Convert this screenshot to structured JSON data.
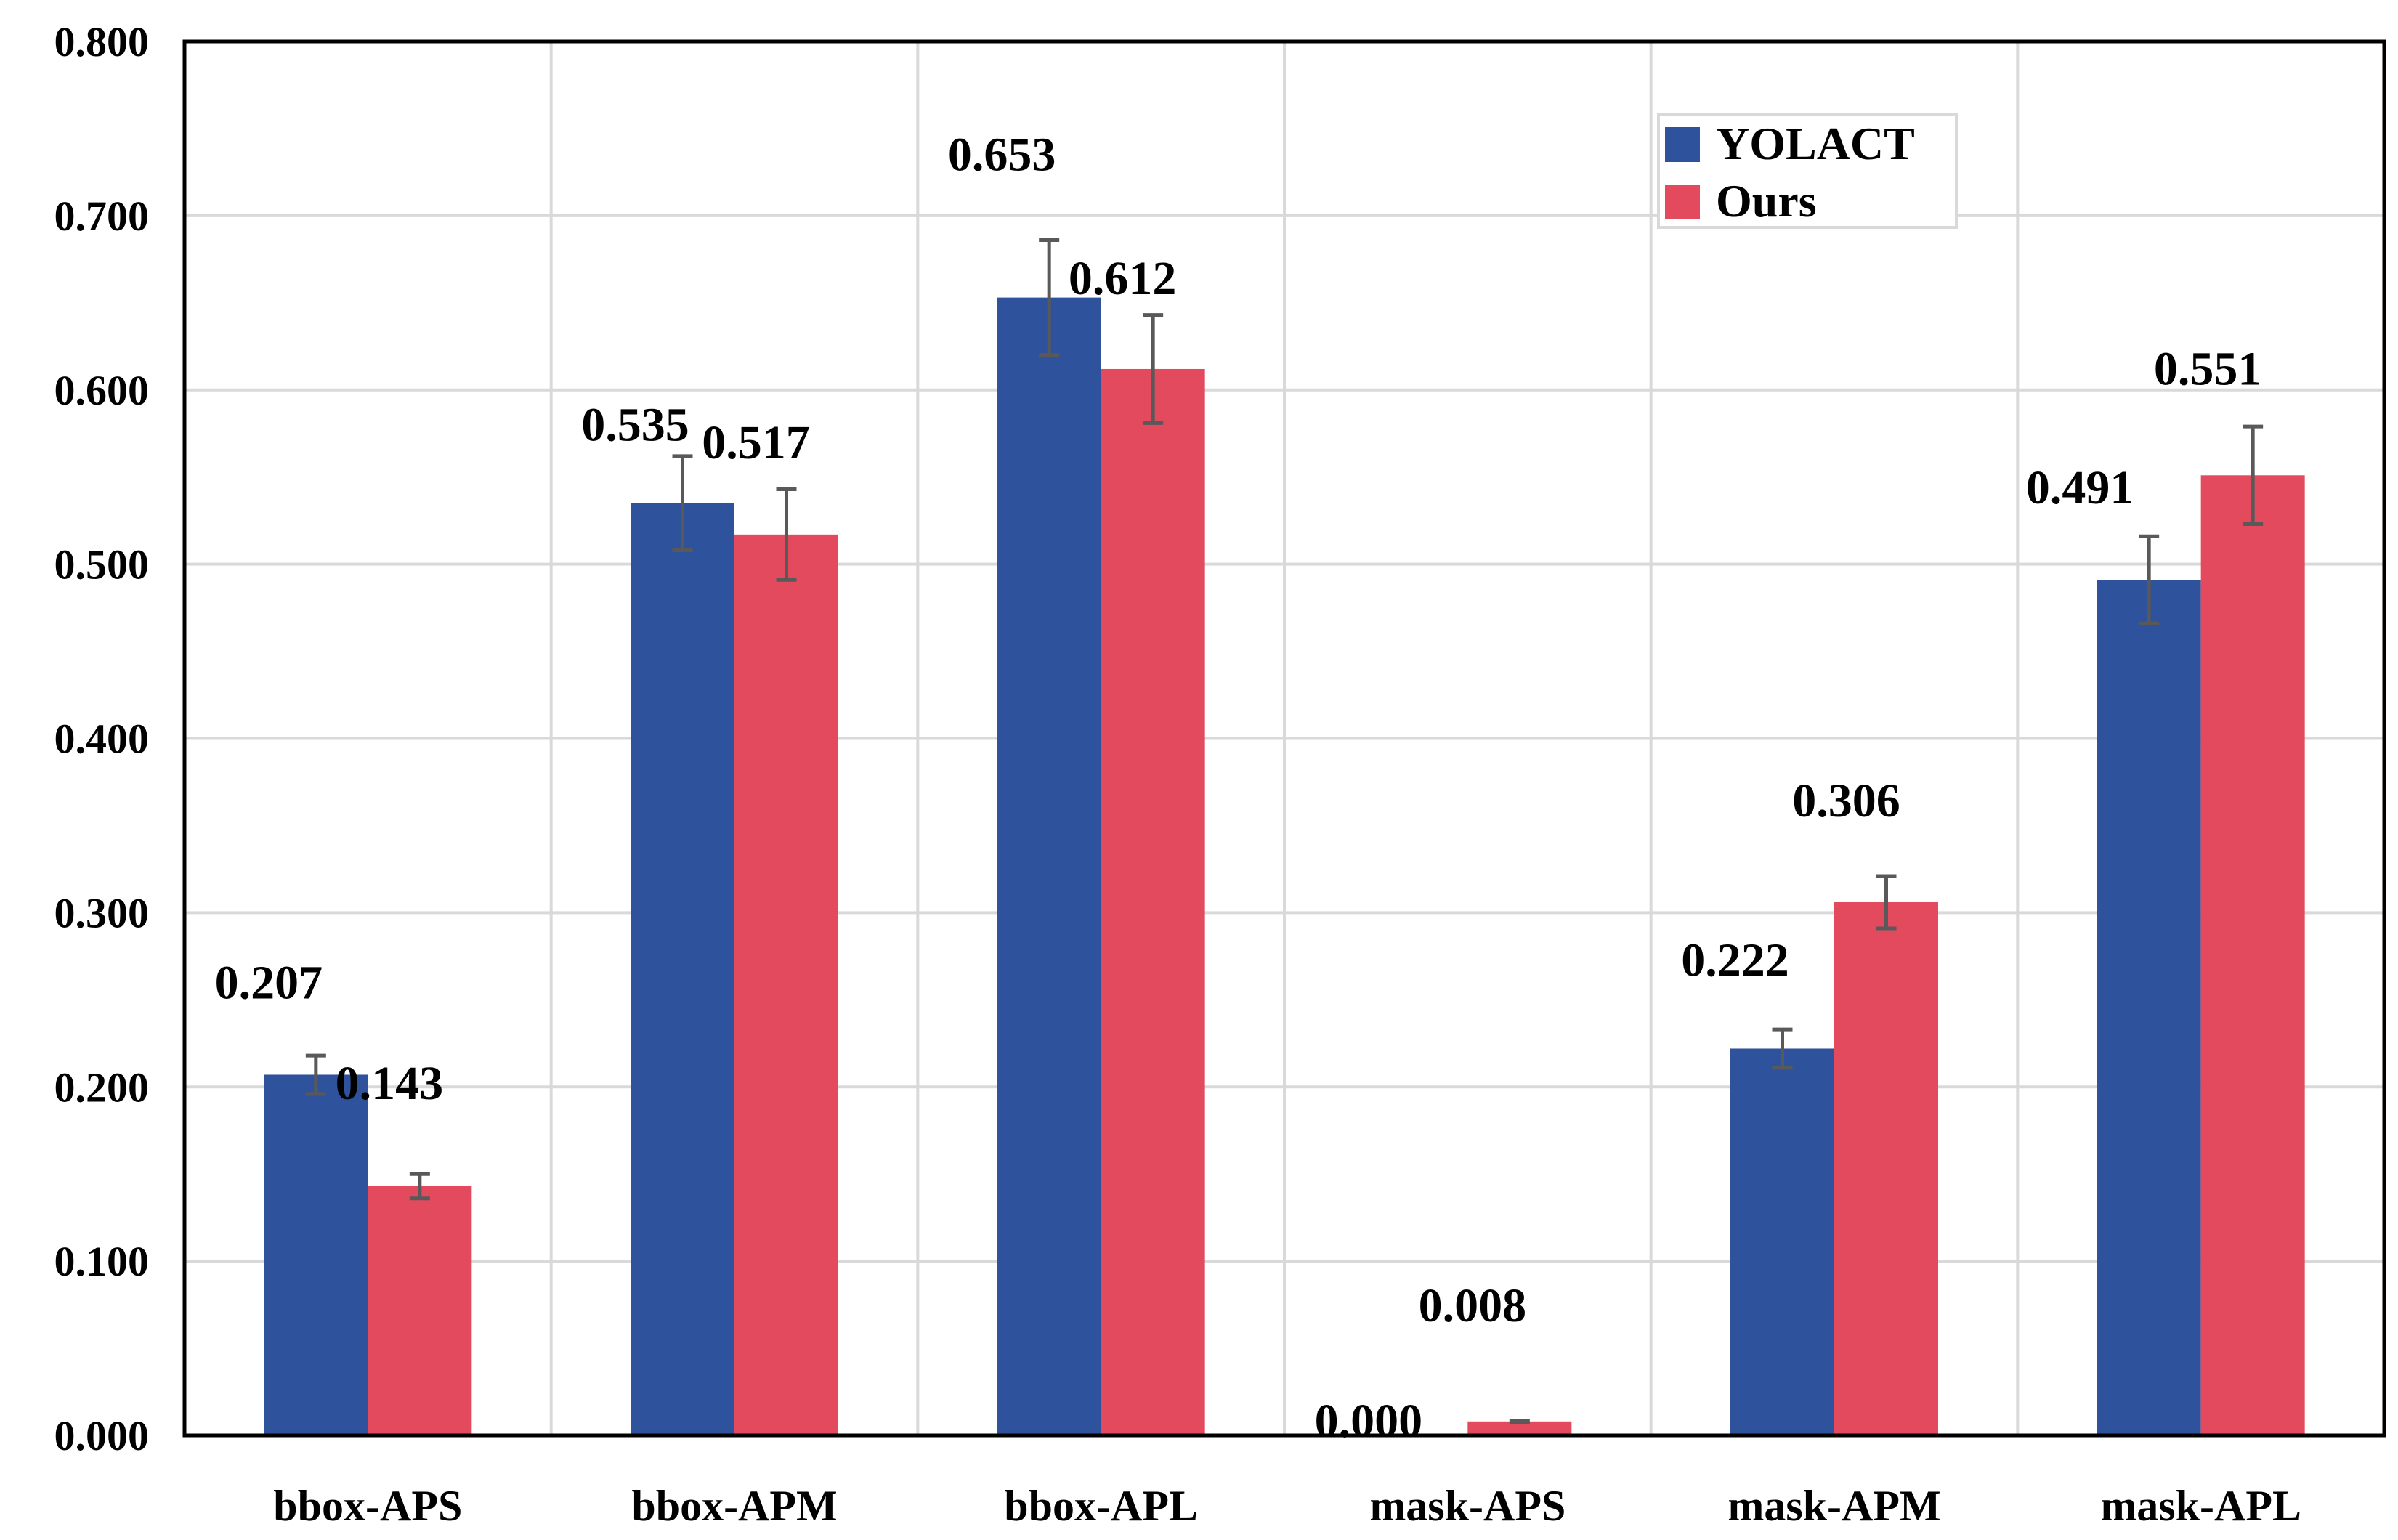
{
  "chart_data": {
    "type": "bar",
    "title": "",
    "xlabel": "",
    "ylabel": "",
    "ylim": [
      0,
      0.8
    ],
    "yticks": [
      "0.000",
      "0.100",
      "0.200",
      "0.300",
      "0.400",
      "0.500",
      "0.600",
      "0.700",
      "0.800"
    ],
    "ytick_values": [
      0,
      0.1,
      0.2,
      0.3,
      0.4,
      0.5,
      0.6,
      0.7,
      0.8
    ],
    "grid": true,
    "legend_position": "top-right",
    "categories": [
      "bbox-APS",
      "bbox-APM",
      "bbox-APL",
      "mask-APS",
      "mask-APM",
      "mask-APL"
    ],
    "series": [
      {
        "name": "YOLACT",
        "color": "#2f529c",
        "values": [
          0.207,
          0.535,
          0.653,
          0.0,
          0.222,
          0.491
        ],
        "labels": [
          "0.207",
          "0.535",
          "0.653",
          "0.000",
          "0.222",
          "0.491"
        ],
        "errors": [
          0.011,
          0.027,
          0.033,
          0.0,
          0.011,
          0.025
        ]
      },
      {
        "name": "Ours",
        "color": "#e34a5d",
        "values": [
          0.143,
          0.517,
          0.612,
          0.008,
          0.306,
          0.551
        ],
        "labels": [
          "0.143",
          "0.517",
          "0.612",
          "0.008",
          "0.306",
          "0.551"
        ],
        "errors": [
          0.007,
          0.026,
          0.031,
          0.0005,
          0.015,
          0.028
        ]
      }
    ]
  }
}
